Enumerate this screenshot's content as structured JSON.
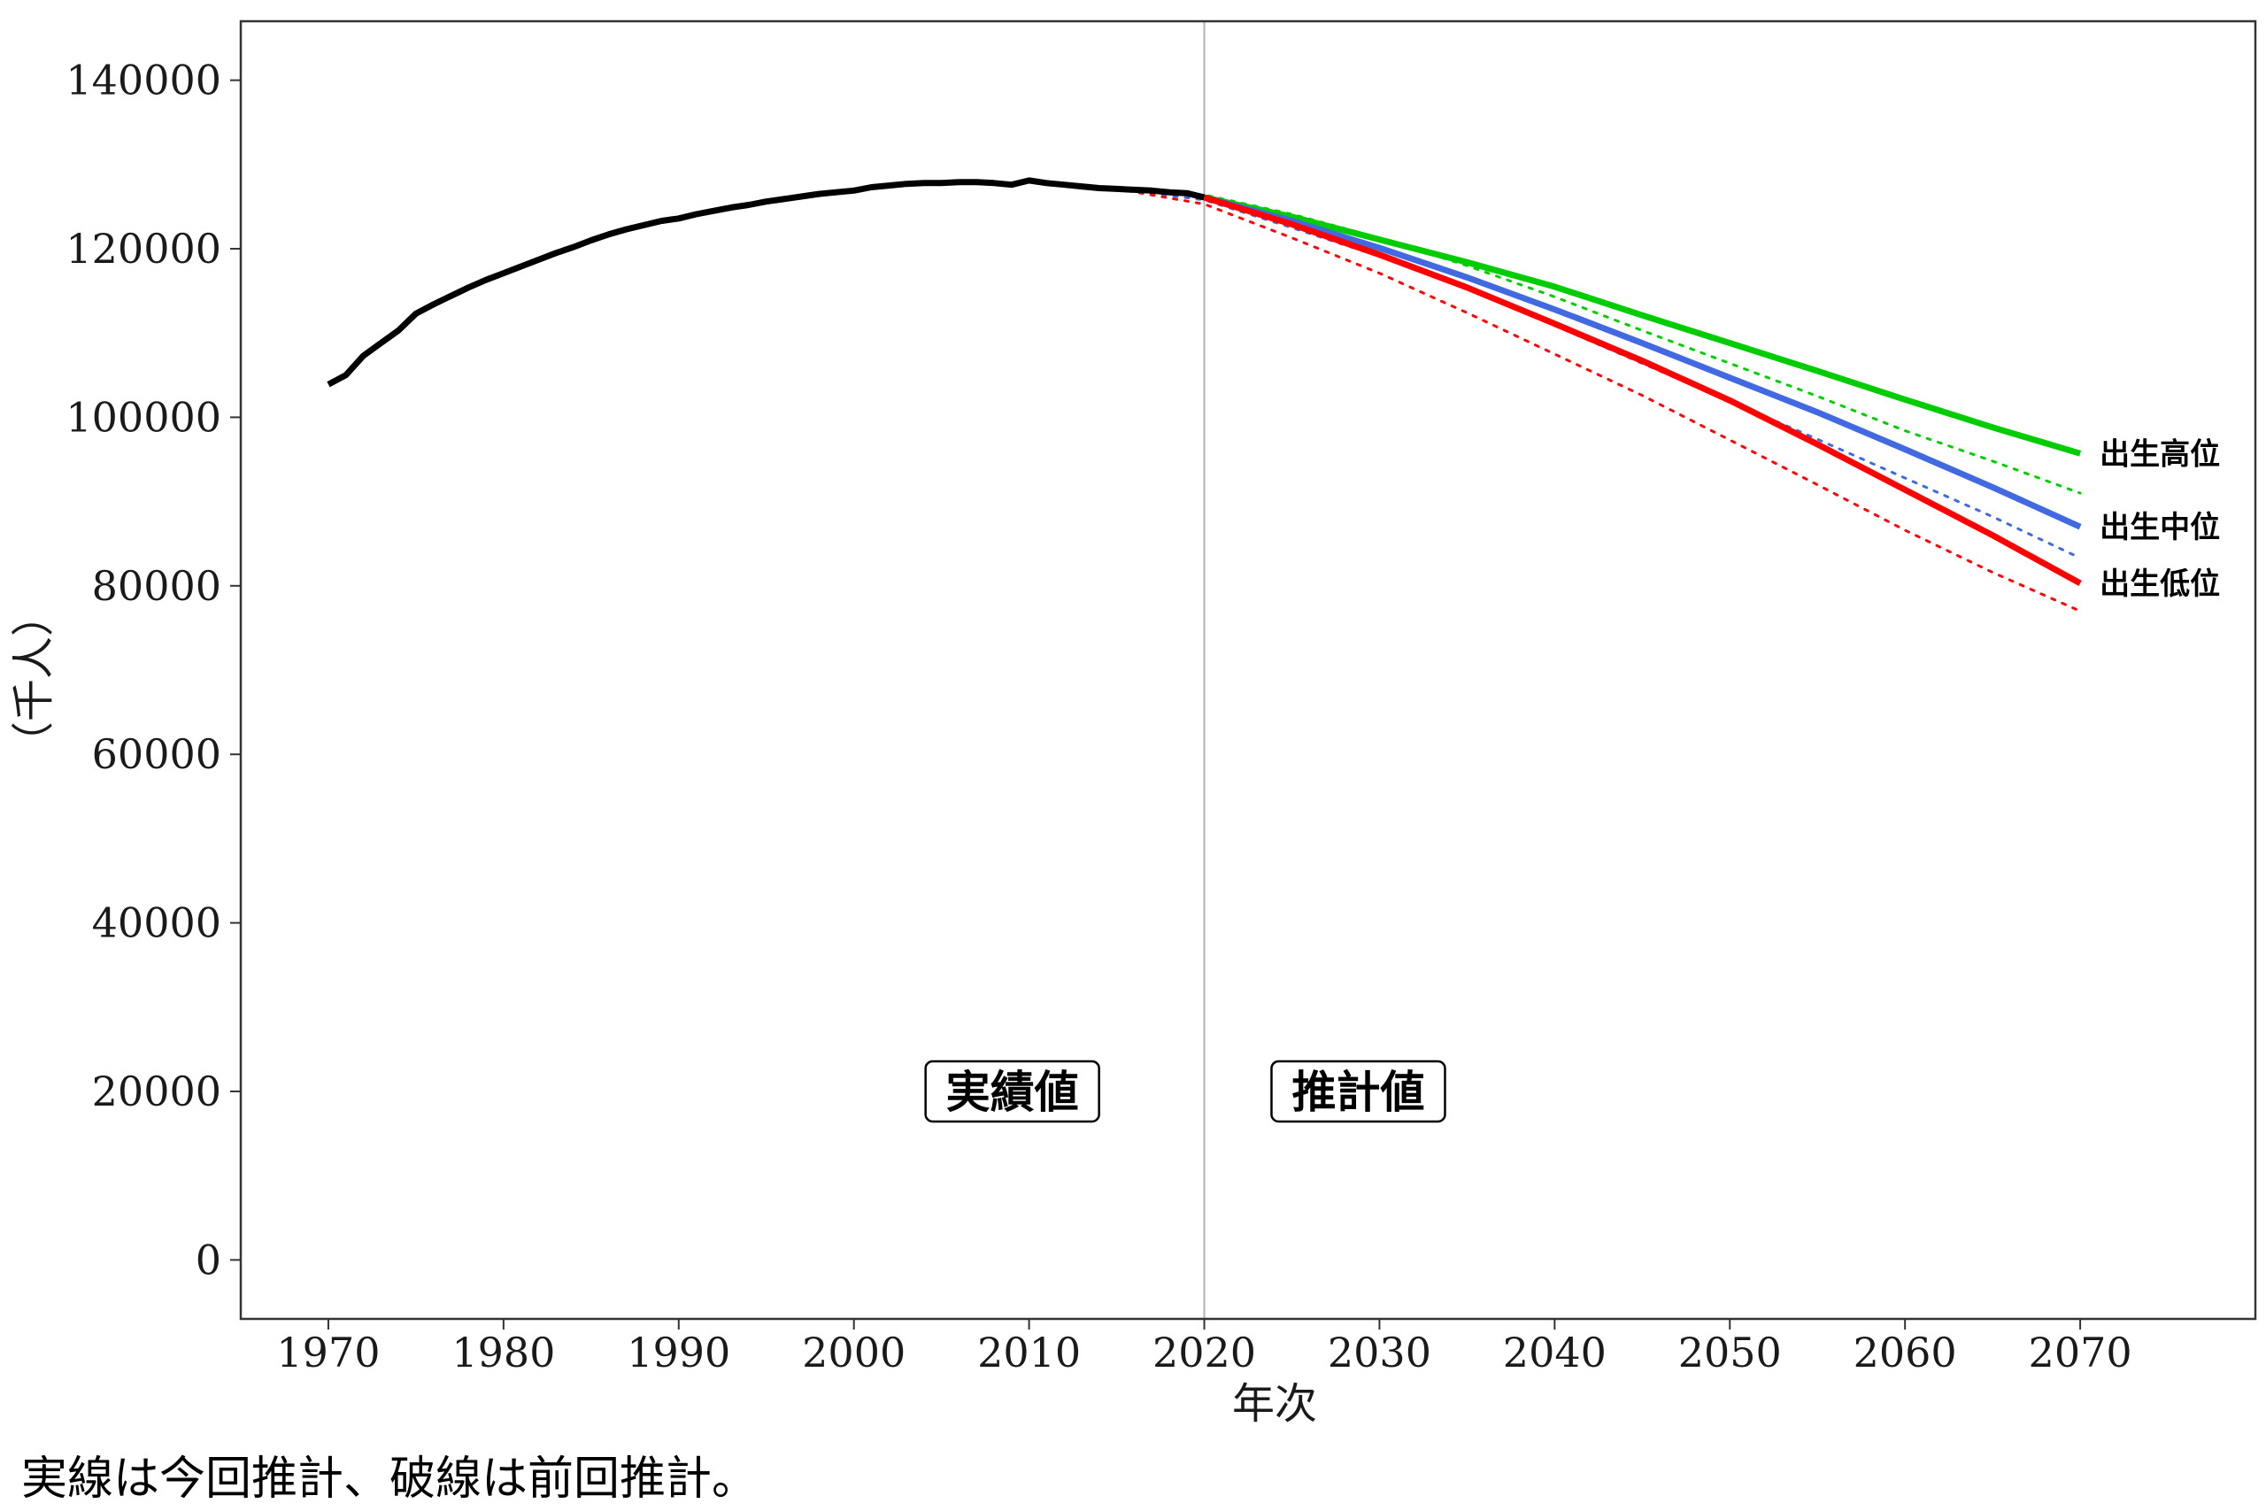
{
  "chart_data": {
    "type": "line",
    "xlabel": "年次",
    "ylabel": "（千人）",
    "xlim": [
      1965,
      2080
    ],
    "ylim": [
      -7000,
      147000
    ],
    "xticks": [
      1970,
      1980,
      1990,
      2000,
      2010,
      2020,
      2030,
      2040,
      2050,
      2060,
      2070
    ],
    "yticks": [
      0,
      20000,
      40000,
      60000,
      80000,
      100000,
      120000,
      140000
    ],
    "divider_x": 2020,
    "grid": false,
    "annotations": [
      {
        "text": "実績値",
        "x": 2005,
        "y": 20000
      },
      {
        "text": "推計値",
        "x": 2025,
        "y": 20000
      }
    ],
    "series": [
      {
        "color": "#000000",
        "style": "solid",
        "x": [
          1970,
          1971,
          1972,
          1973,
          1974,
          1975,
          1976,
          1977,
          1978,
          1979,
          1980,
          1981,
          1982,
          1983,
          1984,
          1985,
          1986,
          1987,
          1988,
          1989,
          1990,
          1991,
          1992,
          1993,
          1994,
          1995,
          1996,
          1997,
          1998,
          1999,
          2000,
          2001,
          2002,
          2003,
          2004,
          2005,
          2006,
          2007,
          2008,
          2009,
          2010,
          2011,
          2012,
          2013,
          2014,
          2015,
          2016,
          2017,
          2018,
          2019,
          2020
        ],
        "values": [
          103900,
          105000,
          107300,
          108800,
          110300,
          112300,
          113400,
          114400,
          115400,
          116300,
          117100,
          117900,
          118700,
          119500,
          120200,
          121000,
          121700,
          122300,
          122800,
          123300,
          123600,
          124100,
          124500,
          124900,
          125200,
          125600,
          125900,
          126200,
          126500,
          126700,
          126900,
          127300,
          127500,
          127700,
          127800,
          127800,
          127900,
          127900,
          127800,
          127600,
          128100,
          127800,
          127600,
          127400,
          127200,
          127100,
          127000,
          126900,
          126700,
          126600,
          126100
        ]
      },
      {
        "name": "出生高位",
        "color": "#00cc00",
        "style": "solid",
        "x": [
          2020,
          2025,
          2030,
          2035,
          2040,
          2045,
          2050,
          2055,
          2060,
          2065,
          2070
        ],
        "values": [
          126100,
          123800,
          121100,
          118400,
          115500,
          112100,
          108800,
          105500,
          102100,
          98800,
          95700
        ]
      },
      {
        "name": "出生中位",
        "color": "#4169e1",
        "style": "solid",
        "x": [
          2020,
          2025,
          2030,
          2035,
          2040,
          2045,
          2050,
          2055,
          2060,
          2065,
          2070
        ],
        "values": [
          126100,
          123300,
          120100,
          116600,
          112800,
          108800,
          104700,
          100600,
          96200,
          91700,
          87000
        ]
      },
      {
        "name": "出生低位",
        "color": "#ff0000",
        "style": "solid",
        "x": [
          2020,
          2025,
          2030,
          2035,
          2040,
          2045,
          2050,
          2055,
          2060,
          2065,
          2070
        ],
        "values": [
          126100,
          122900,
          119300,
          115400,
          111100,
          106700,
          102000,
          96800,
          91400,
          86000,
          80300
        ]
      },
      {
        "color": "#00cc00",
        "style": "dotted",
        "x": [
          2015,
          2020,
          2025,
          2030,
          2035,
          2040,
          2045,
          2050,
          2055,
          2060,
          2065,
          2070
        ],
        "values": [
          127100,
          126400,
          124100,
          121300,
          118000,
          114300,
          110300,
          106400,
          102500,
          98400,
          94800,
          91000
        ]
      },
      {
        "color": "#4169e1",
        "style": "dotted",
        "x": [
          2015,
          2020,
          2025,
          2030,
          2035,
          2040,
          2045,
          2050,
          2055,
          2060,
          2065,
          2070
        ],
        "values": [
          127100,
          125800,
          122500,
          119100,
          115200,
          110900,
          106400,
          101900,
          97400,
          92800,
          88200,
          83300
        ]
      },
      {
        "color": "#ff0000",
        "style": "dotted",
        "x": [
          2015,
          2020,
          2025,
          2030,
          2035,
          2040,
          2045,
          2050,
          2055,
          2060,
          2065,
          2070
        ],
        "values": [
          127100,
          125300,
          121300,
          117100,
          112400,
          107500,
          102600,
          97300,
          92000,
          86600,
          81600,
          77000
        ]
      }
    ]
  },
  "caption": "実線は今回推計、破線は前回推計。"
}
